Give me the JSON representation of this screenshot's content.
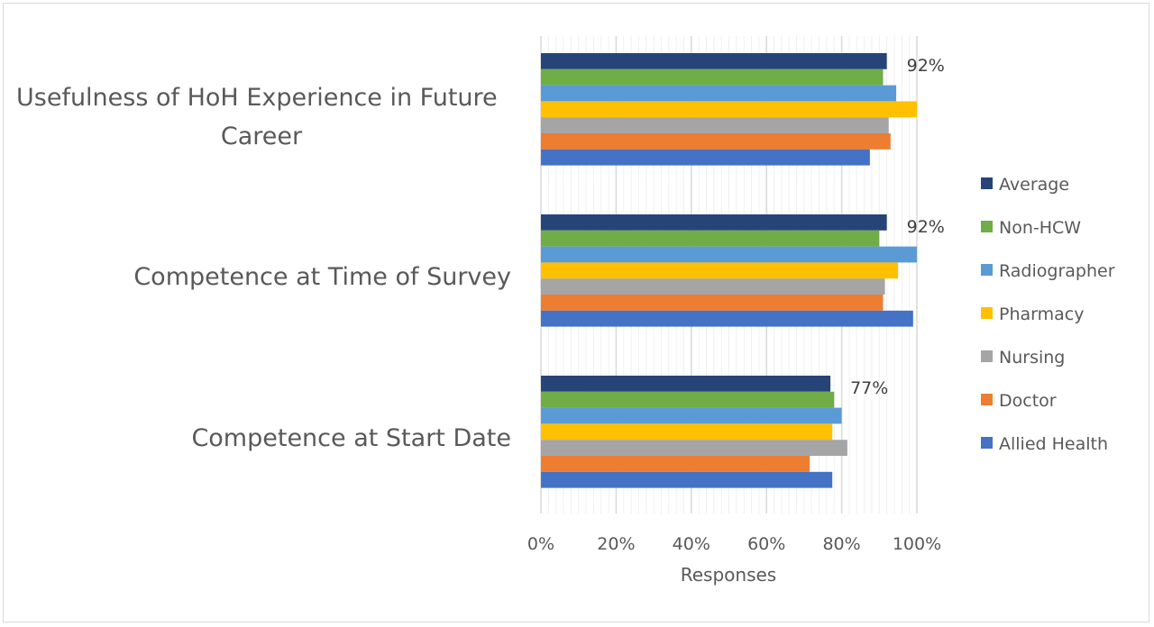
{
  "chart_data": {
    "type": "bar",
    "orientation": "horizontal",
    "title": "",
    "xlabel": "Responses",
    "ylabel": "",
    "xlim": [
      0,
      1
    ],
    "x_ticks": [
      "0%",
      "20%",
      "40%",
      "60%",
      "80%",
      "100%"
    ],
    "grid": true,
    "legend_position": "right",
    "categories": [
      "Usefulness of HoH Experience in Future Career",
      "Competence at Time of Survey",
      "Competence at Start Date"
    ],
    "series": [
      {
        "name": "Average",
        "color": "#264478",
        "values": [
          0.92,
          0.92,
          0.77
        ]
      },
      {
        "name": "Non-HCW",
        "color": "#70AD47",
        "values": [
          0.91,
          0.9,
          0.78
        ]
      },
      {
        "name": "Radiographer",
        "color": "#5B9BD5",
        "values": [
          0.945,
          1.0,
          0.8
        ]
      },
      {
        "name": "Pharmacy",
        "color": "#FFC000",
        "values": [
          1.0,
          0.95,
          0.775
        ]
      },
      {
        "name": "Nursing",
        "color": "#A5A5A5",
        "values": [
          0.925,
          0.915,
          0.815
        ]
      },
      {
        "name": "Doctor",
        "color": "#ED7D31",
        "values": [
          0.93,
          0.91,
          0.715
        ]
      },
      {
        "name": "Allied Health",
        "color": "#4472C4",
        "values": [
          0.875,
          0.99,
          0.775
        ]
      }
    ],
    "data_labels": [
      "92%",
      "92%",
      "77%"
    ]
  }
}
